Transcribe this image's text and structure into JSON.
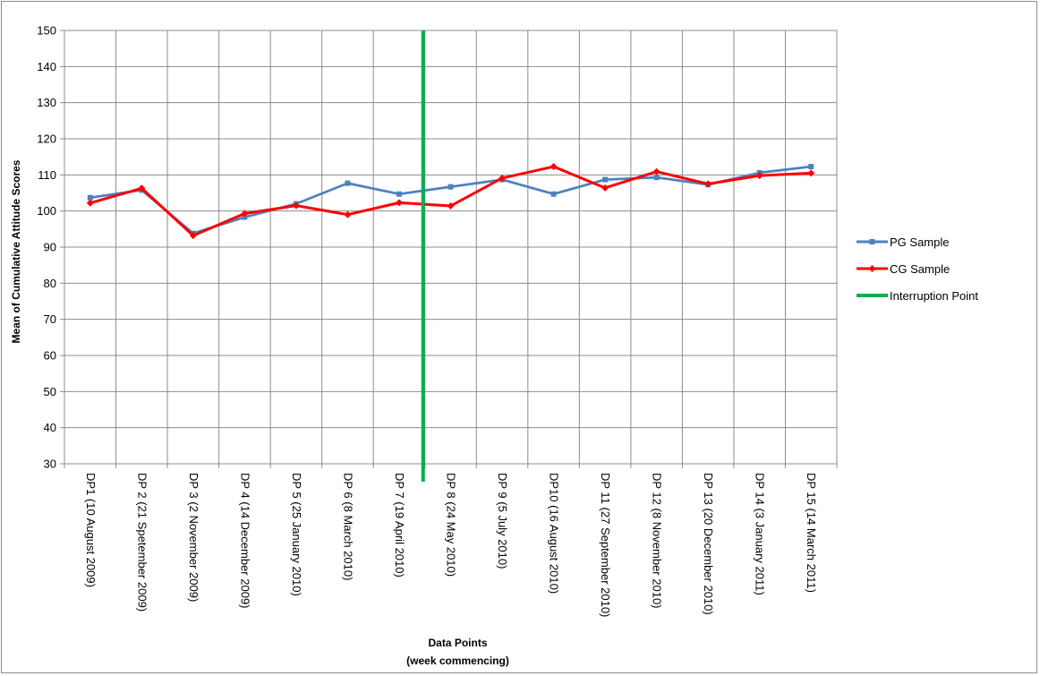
{
  "chart_data": {
    "type": "line",
    "title": "",
    "xlabel": [
      "Data Points",
      "(week commencing)"
    ],
    "ylabel": "Mean of Cumulative  Attitude Scores",
    "ylim": [
      30,
      150
    ],
    "ytick_step": 10,
    "grid": true,
    "legend_position": "right",
    "categories": [
      "DP1 (10 August 2009)",
      "DP 2 (21 Spetember 2009)",
      "DP 3 (2 November 2009)",
      "DP 4 (14 December 2009)",
      "DP 5 (25 January 2010)",
      "DP 6 (8 March 2010)",
      "DP 7 (19 April 2010)",
      "DP 8 (24 May 2010)",
      "DP 9 (5 July 2010)",
      "DP10 (16 August 2010)",
      "DP 11 (27 September 2010)",
      "DP 12 (8 November 2010)",
      "DP 13 (20 December 2010)",
      "DP 14 (3 January 2011)",
      "DP 15 (14 March 2011)"
    ],
    "series": [
      {
        "name": "PG Sample",
        "color": "#4f81bd",
        "marker": "square",
        "values": [
          103.7,
          105.8,
          93.8,
          98.3,
          102.0,
          107.7,
          104.7,
          106.7,
          108.7,
          104.7,
          108.7,
          109.3,
          107.3,
          110.6,
          112.3
        ]
      },
      {
        "name": "CG Sample",
        "color": "#ff0000",
        "marker": "diamond",
        "values": [
          102.2,
          106.3,
          93.2,
          99.3,
          101.5,
          99.0,
          102.3,
          101.4,
          109.1,
          112.3,
          106.4,
          110.9,
          107.5,
          109.8,
          110.5
        ]
      }
    ],
    "interruption": {
      "name": "Interruption Point",
      "color": "#00b050",
      "after_category_index": 6
    }
  }
}
